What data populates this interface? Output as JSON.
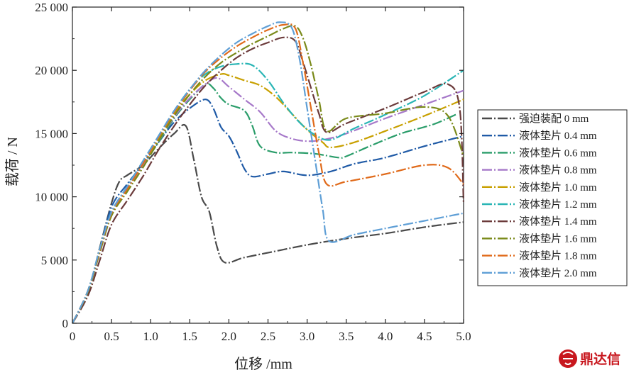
{
  "chart_data": {
    "type": "line",
    "xlabel": "位移 /mm",
    "ylabel": "载荷 / N",
    "xlim": [
      0,
      5.0
    ],
    "ylim": [
      0,
      25000
    ],
    "x_ticks": [
      "0",
      "0.5",
      "1.0",
      "1.5",
      "2.0",
      "2.5",
      "3.0",
      "3.5",
      "4.0",
      "4.5",
      "5.0"
    ],
    "y_ticks": [
      "0",
      "5 000",
      "10 000",
      "15 000",
      "20 000",
      "25 000"
    ],
    "grid": false,
    "legend_position": "right",
    "series": [
      {
        "name": "强迫装配 0 mm",
        "color": "#4a4a4a",
        "points": [
          [
            0,
            0
          ],
          [
            0.2,
            2500
          ],
          [
            0.35,
            6000
          ],
          [
            0.5,
            9500
          ],
          [
            0.6,
            11200
          ],
          [
            0.7,
            11700
          ],
          [
            0.9,
            12500
          ],
          [
            1.1,
            13800
          ],
          [
            1.3,
            15000
          ],
          [
            1.45,
            15600
          ],
          [
            1.55,
            13000
          ],
          [
            1.65,
            10000
          ],
          [
            1.75,
            8800
          ],
          [
            1.85,
            6000
          ],
          [
            1.95,
            4800
          ],
          [
            2.2,
            5200
          ],
          [
            2.6,
            5700
          ],
          [
            3.0,
            6200
          ],
          [
            3.5,
            6700
          ],
          [
            4.0,
            7100
          ],
          [
            4.5,
            7600
          ],
          [
            5.0,
            8000
          ]
        ]
      },
      {
        "name": "液体垫片 0.4 mm",
        "color": "#1f5aa6",
        "points": [
          [
            0,
            0
          ],
          [
            0.2,
            2500
          ],
          [
            0.35,
            5800
          ],
          [
            0.5,
            9200
          ],
          [
            0.7,
            11000
          ],
          [
            0.9,
            12600
          ],
          [
            1.1,
            14300
          ],
          [
            1.3,
            15900
          ],
          [
            1.5,
            17000
          ],
          [
            1.7,
            17700
          ],
          [
            1.8,
            17000
          ],
          [
            1.9,
            15500
          ],
          [
            2.0,
            14800
          ],
          [
            2.1,
            13600
          ],
          [
            2.2,
            12200
          ],
          [
            2.3,
            11600
          ],
          [
            2.5,
            11800
          ],
          [
            2.7,
            12000
          ],
          [
            3.0,
            11700
          ],
          [
            3.3,
            12000
          ],
          [
            3.6,
            12600
          ],
          [
            4.0,
            13100
          ],
          [
            4.5,
            14000
          ],
          [
            5.0,
            14800
          ]
        ]
      },
      {
        "name": "液体垫片 0.6 mm",
        "color": "#2a9d6a",
        "points": [
          [
            0,
            0
          ],
          [
            0.2,
            2500
          ],
          [
            0.35,
            5800
          ],
          [
            0.5,
            8800
          ],
          [
            0.7,
            10700
          ],
          [
            0.9,
            12500
          ],
          [
            1.1,
            14300
          ],
          [
            1.3,
            16200
          ],
          [
            1.5,
            17700
          ],
          [
            1.7,
            18900
          ],
          [
            1.8,
            18600
          ],
          [
            1.9,
            17800
          ],
          [
            2.0,
            17300
          ],
          [
            2.2,
            16800
          ],
          [
            2.3,
            15600
          ],
          [
            2.4,
            14000
          ],
          [
            2.6,
            13500
          ],
          [
            2.8,
            13500
          ],
          [
            3.1,
            13400
          ],
          [
            3.4,
            13100
          ],
          [
            3.5,
            13200
          ],
          [
            3.8,
            14000
          ],
          [
            4.2,
            15000
          ],
          [
            4.6,
            15700
          ],
          [
            4.9,
            16500
          ]
        ]
      },
      {
        "name": "液体垫片 0.8 mm",
        "color": "#a678c9",
        "points": [
          [
            0,
            0
          ],
          [
            0.2,
            2500
          ],
          [
            0.35,
            5600
          ],
          [
            0.5,
            8600
          ],
          [
            0.7,
            10600
          ],
          [
            0.9,
            12500
          ],
          [
            1.1,
            14400
          ],
          [
            1.3,
            16300
          ],
          [
            1.5,
            17800
          ],
          [
            1.7,
            18900
          ],
          [
            1.85,
            19400
          ],
          [
            2.0,
            18700
          ],
          [
            2.2,
            17700
          ],
          [
            2.4,
            16700
          ],
          [
            2.6,
            15200
          ],
          [
            2.8,
            14600
          ],
          [
            3.0,
            14400
          ],
          [
            3.2,
            14500
          ],
          [
            3.5,
            15000
          ],
          [
            4.0,
            16200
          ],
          [
            4.5,
            17300
          ],
          [
            5.0,
            18400
          ]
        ]
      },
      {
        "name": "液体垫片 1.0 mm",
        "color": "#c8a000",
        "points": [
          [
            0,
            0
          ],
          [
            0.2,
            2600
          ],
          [
            0.35,
            5800
          ],
          [
            0.5,
            8700
          ],
          [
            0.7,
            10700
          ],
          [
            0.9,
            12600
          ],
          [
            1.1,
            14600
          ],
          [
            1.3,
            16600
          ],
          [
            1.5,
            18100
          ],
          [
            1.7,
            19200
          ],
          [
            1.9,
            19700
          ],
          [
            2.0,
            19600
          ],
          [
            2.2,
            19200
          ],
          [
            2.4,
            18800
          ],
          [
            2.6,
            17900
          ],
          [
            2.8,
            16600
          ],
          [
            3.0,
            15300
          ],
          [
            3.2,
            14300
          ],
          [
            3.3,
            13900
          ],
          [
            3.6,
            14300
          ],
          [
            4.0,
            15200
          ],
          [
            4.5,
            16400
          ],
          [
            5.0,
            17700
          ]
        ]
      },
      {
        "name": "液体垫片 1.2 mm",
        "color": "#29b5b5",
        "points": [
          [
            0,
            0
          ],
          [
            0.2,
            2600
          ],
          [
            0.35,
            5900
          ],
          [
            0.5,
            8800
          ],
          [
            0.7,
            10800
          ],
          [
            0.9,
            12800
          ],
          [
            1.1,
            14800
          ],
          [
            1.3,
            16800
          ],
          [
            1.5,
            18500
          ],
          [
            1.7,
            19700
          ],
          [
            1.9,
            20300
          ],
          [
            2.1,
            20500
          ],
          [
            2.3,
            20400
          ],
          [
            2.5,
            19200
          ],
          [
            2.7,
            17400
          ],
          [
            2.9,
            15900
          ],
          [
            3.1,
            14900
          ],
          [
            3.3,
            14500
          ],
          [
            3.6,
            15400
          ],
          [
            4.0,
            16500
          ],
          [
            4.5,
            18000
          ],
          [
            5.0,
            20000
          ]
        ]
      },
      {
        "name": "液体垫片 1.4 mm",
        "color": "#6b3a3a",
        "points": [
          [
            0,
            0
          ],
          [
            0.2,
            2200
          ],
          [
            0.35,
            5000
          ],
          [
            0.5,
            7800
          ],
          [
            0.7,
            9700
          ],
          [
            0.9,
            11600
          ],
          [
            1.1,
            13700
          ],
          [
            1.3,
            15600
          ],
          [
            1.5,
            17300
          ],
          [
            1.7,
            18800
          ],
          [
            1.9,
            20000
          ],
          [
            2.1,
            21000
          ],
          [
            2.3,
            21700
          ],
          [
            2.5,
            22200
          ],
          [
            2.7,
            22600
          ],
          [
            2.85,
            22300
          ],
          [
            2.95,
            20600
          ],
          [
            3.05,
            18600
          ],
          [
            3.15,
            16600
          ],
          [
            3.25,
            15100
          ],
          [
            3.5,
            15800
          ],
          [
            4.0,
            17000
          ],
          [
            4.5,
            18300
          ],
          [
            4.8,
            18900
          ],
          [
            4.95,
            17000
          ],
          [
            5.0,
            9500
          ]
        ]
      },
      {
        "name": "液体垫片 1.6 mm",
        "color": "#7a8a1a",
        "points": [
          [
            0,
            0
          ],
          [
            0.2,
            2500
          ],
          [
            0.35,
            5600
          ],
          [
            0.5,
            8500
          ],
          [
            0.7,
            10400
          ],
          [
            0.9,
            12300
          ],
          [
            1.1,
            14400
          ],
          [
            1.3,
            16400
          ],
          [
            1.5,
            18100
          ],
          [
            1.7,
            19500
          ],
          [
            1.9,
            20600
          ],
          [
            2.1,
            21400
          ],
          [
            2.3,
            22100
          ],
          [
            2.5,
            22700
          ],
          [
            2.7,
            23300
          ],
          [
            2.85,
            23500
          ],
          [
            2.95,
            22500
          ],
          [
            3.05,
            20400
          ],
          [
            3.15,
            17700
          ],
          [
            3.25,
            15200
          ],
          [
            3.5,
            16200
          ],
          [
            4.0,
            16600
          ],
          [
            4.5,
            17100
          ],
          [
            4.8,
            16400
          ],
          [
            5.0,
            13200
          ]
        ]
      },
      {
        "name": "液体垫片 1.8 mm",
        "color": "#e06a1a",
        "points": [
          [
            0,
            0
          ],
          [
            0.2,
            2600
          ],
          [
            0.35,
            5800
          ],
          [
            0.5,
            8700
          ],
          [
            0.7,
            10600
          ],
          [
            0.9,
            12600
          ],
          [
            1.1,
            14700
          ],
          [
            1.3,
            16700
          ],
          [
            1.5,
            18400
          ],
          [
            1.7,
            19900
          ],
          [
            1.9,
            21000
          ],
          [
            2.1,
            21900
          ],
          [
            2.3,
            22600
          ],
          [
            2.5,
            23200
          ],
          [
            2.7,
            23600
          ],
          [
            2.85,
            23300
          ],
          [
            2.95,
            20500
          ],
          [
            3.05,
            17000
          ],
          [
            3.15,
            13500
          ],
          [
            3.25,
            11000
          ],
          [
            3.5,
            11200
          ],
          [
            4.0,
            11800
          ],
          [
            4.5,
            12500
          ],
          [
            4.8,
            12300
          ],
          [
            5.0,
            11000
          ]
        ]
      },
      {
        "name": "液体垫片 2.0 mm",
        "color": "#5f9fd6",
        "points": [
          [
            0,
            0
          ],
          [
            0.2,
            2600
          ],
          [
            0.35,
            5900
          ],
          [
            0.5,
            8800
          ],
          [
            0.7,
            10800
          ],
          [
            0.9,
            12800
          ],
          [
            1.1,
            14800
          ],
          [
            1.3,
            16800
          ],
          [
            1.5,
            18500
          ],
          [
            1.7,
            20000
          ],
          [
            1.9,
            21200
          ],
          [
            2.1,
            22200
          ],
          [
            2.3,
            22900
          ],
          [
            2.5,
            23500
          ],
          [
            2.65,
            23800
          ],
          [
            2.8,
            23400
          ],
          [
            2.9,
            21000
          ],
          [
            3.0,
            17000
          ],
          [
            3.1,
            13000
          ],
          [
            3.2,
            9000
          ],
          [
            3.28,
            6500
          ],
          [
            3.6,
            7000
          ],
          [
            4.0,
            7500
          ],
          [
            4.5,
            8100
          ],
          [
            5.0,
            8700
          ]
        ]
      }
    ]
  },
  "watermark": {
    "text": "鼎达信",
    "color": "#c8171e"
  }
}
